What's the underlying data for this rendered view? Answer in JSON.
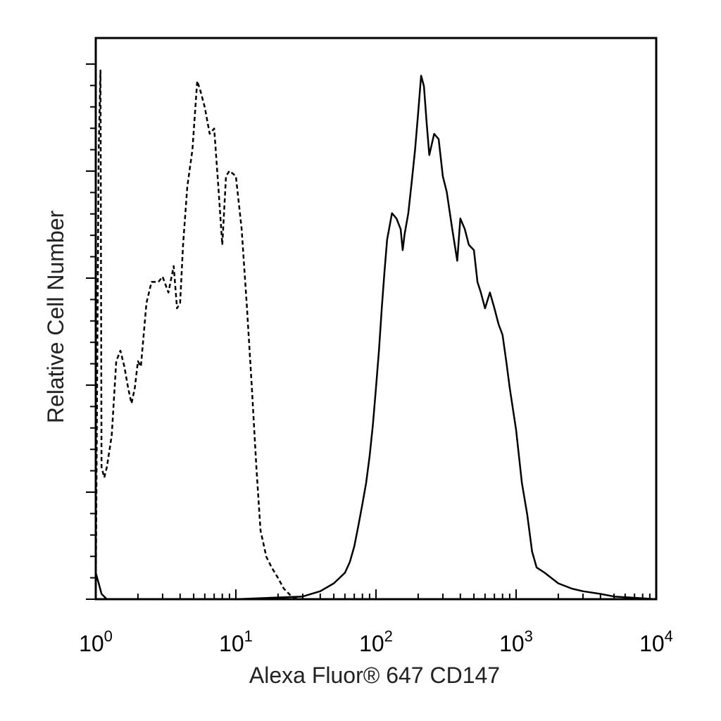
{
  "chart_data": {
    "type": "line",
    "xlabel": "Alexa Fluor® 647 CD147",
    "ylabel": "Relative Cell Number",
    "x_scale": "log",
    "xlim": [
      1,
      10000
    ],
    "ylim": [
      0,
      100
    ],
    "x_ticks": [
      {
        "value": 1,
        "base": "10",
        "exp": "0"
      },
      {
        "value": 10,
        "base": "10",
        "exp": "1"
      },
      {
        "value": 100,
        "base": "10",
        "exp": "2"
      },
      {
        "value": 1000,
        "base": "10",
        "exp": "3"
      },
      {
        "value": 10000,
        "base": "10",
        "exp": "4"
      }
    ],
    "y_tick_labels": false,
    "grid": false,
    "legend": "none",
    "series": [
      {
        "style": "dashed",
        "color": "#000000",
        "x": [
          1.0,
          1.03,
          1.05,
          1.08,
          1.1,
          1.15,
          1.2,
          1.3,
          1.4,
          1.5,
          1.6,
          1.7,
          1.8,
          1.9,
          2.0,
          2.1,
          2.3,
          2.5,
          2.8,
          3.0,
          3.3,
          3.6,
          3.8,
          4.0,
          4.2,
          4.5,
          4.9,
          5.3,
          5.6,
          6.0,
          6.5,
          7.0,
          7.5,
          8.0,
          8.5,
          9.0,
          10.0,
          11.0,
          12.0,
          13.0,
          14.0,
          15.0,
          16.5,
          18.0,
          20.0,
          22.0,
          25.0,
          28.0,
          30.0,
          35.0,
          50.0,
          100.0,
          1000.0,
          10000.0
        ],
        "y": [
          0,
          55,
          85,
          100,
          25,
          23,
          25,
          31,
          45,
          47,
          44,
          40,
          37,
          40,
          45,
          44,
          56,
          60,
          60,
          61,
          58,
          63,
          55,
          56,
          67,
          78,
          85,
          98,
          96,
          93,
          88,
          89,
          78,
          67,
          80,
          81,
          80,
          70,
          55,
          40,
          25,
          13,
          8,
          6,
          4,
          2,
          0.5,
          0,
          0,
          0,
          0,
          0,
          0,
          0
        ]
      },
      {
        "style": "solid",
        "color": "#000000",
        "x": [
          1.0,
          1.05,
          1.1,
          1.2,
          1.3,
          1.5,
          3.0,
          10.0,
          30.0,
          40.0,
          50.0,
          60.0,
          65.0,
          70.0,
          75.0,
          80.0,
          85.0,
          90.0,
          95.0,
          100.0,
          105.0,
          110.0,
          115.0,
          120.0,
          130.0,
          140.0,
          150.0,
          155.0,
          160.0,
          170.0,
          180.0,
          190.0,
          200.0,
          210.0,
          220.0,
          230.0,
          240.0,
          260.0,
          280.0,
          300.0,
          320.0,
          350.0,
          380.0,
          400.0,
          430.0,
          460.0,
          500.0,
          530.0,
          560.0,
          600.0,
          650.0,
          700.0,
          750.0,
          800.0,
          850.0,
          900.0,
          1000.0,
          1100.0,
          1200.0,
          1300.0,
          1400.0,
          1600.0,
          2000.0,
          2500.0,
          3000.0,
          4000.0,
          5000.0,
          10000.0
        ],
        "y": [
          5,
          3,
          1,
          0,
          0,
          0,
          0,
          0,
          0.5,
          1.5,
          3,
          5,
          7,
          10,
          14,
          18,
          22,
          27,
          33,
          40,
          47,
          55,
          62,
          68,
          73,
          72,
          70,
          66,
          69,
          73,
          79,
          85,
          92,
          99,
          97,
          90,
          84,
          88,
          87,
          80,
          77,
          70,
          64,
          72,
          70,
          67,
          66,
          60,
          58,
          55,
          58,
          55,
          52,
          50,
          45,
          40,
          32,
          22,
          16,
          9,
          6,
          5,
          3,
          2,
          1.5,
          1,
          0.5,
          0
        ]
      }
    ]
  }
}
